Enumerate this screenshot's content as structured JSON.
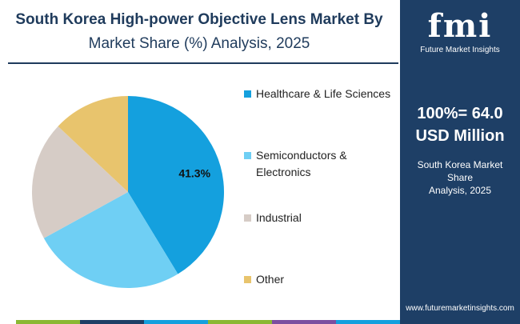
{
  "title": {
    "line1": "South Korea High-power Objective Lens Market By",
    "line2": "Market Share (%) Analysis, 2025"
  },
  "chart_data": {
    "type": "pie",
    "categories": [
      "Healthcare & Life Sciences",
      "Semiconductors & Electronics",
      "Industrial",
      "Other"
    ],
    "values": [
      41.3,
      25.7,
      20.0,
      13.0
    ],
    "colors": [
      "#14a0de",
      "#6fcff4",
      "#d6ccc6",
      "#e8c46d"
    ],
    "data_labels": [
      "41.3%",
      "",
      "",
      ""
    ],
    "legend_position": "right"
  },
  "legend": [
    {
      "line1": "Healthcare & Life Sciences",
      "line2": ""
    },
    {
      "line1": "Semiconductors &",
      "line2": "Electronics"
    },
    {
      "line1": "Industrial",
      "line2": ""
    },
    {
      "line1": "Other",
      "line2": ""
    }
  ],
  "sidebar": {
    "logo_word": "fmi",
    "logo_tagline": "Future Market Insights",
    "total_line1": "100%= 64.0",
    "total_line2": "USD Million",
    "subtitle_line1": "South Korea Market Share",
    "subtitle_line2": "Analysis, 2025",
    "url": "www.futuremarketinsights.com",
    "bg_color": "#1e3f66"
  },
  "bottom_bar_colors": [
    "#8ab833",
    "#1e3f66",
    "#14a0de",
    "#8ab833",
    "#7b4fa0",
    "#14a0de"
  ]
}
